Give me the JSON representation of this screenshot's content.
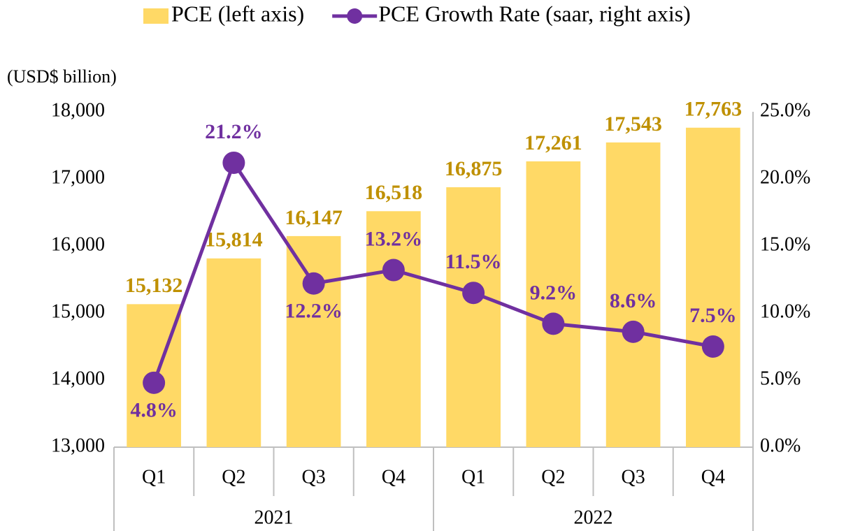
{
  "chart_data": {
    "type": "bar",
    "y_label": "(USD$ billion)",
    "categories": [
      "Q1",
      "Q2",
      "Q3",
      "Q4",
      "Q1",
      "Q2",
      "Q3",
      "Q4"
    ],
    "x_groups": [
      "2021",
      "2022"
    ],
    "series": [
      {
        "name": "PCE (left axis)",
        "type": "bar",
        "color": "#ffd966",
        "label_color": "#bf9000",
        "values": [
          15132,
          15814,
          16147,
          16518,
          16875,
          17261,
          17543,
          17763
        ],
        "value_labels": [
          "15,132",
          "15,814",
          "16,147",
          "16,518",
          "16,875",
          "17,261",
          "17,543",
          "17,763"
        ]
      },
      {
        "name": "PCE Growth Rate (saar, right axis)",
        "type": "line",
        "axis": "y2",
        "color": "#7030a0",
        "label_color": "#7030a0",
        "values": [
          4.8,
          21.2,
          12.2,
          13.2,
          11.5,
          9.2,
          8.6,
          7.5
        ],
        "value_labels": [
          "4.8%",
          "21.2%",
          "12.2%",
          "13.2%",
          "11.5%",
          "9.2%",
          "8.6%",
          "7.5%"
        ]
      }
    ],
    "ylim": [
      13000,
      18000
    ],
    "yticks": [
      {
        "value": 13000,
        "label": "13,000"
      },
      {
        "value": 14000,
        "label": "14,000"
      },
      {
        "value": 15000,
        "label": "15,000"
      },
      {
        "value": 16000,
        "label": "16,000"
      },
      {
        "value": 17000,
        "label": "17,000"
      },
      {
        "value": 18000,
        "label": "18,000"
      }
    ],
    "y2lim": [
      0,
      25
    ],
    "y2ticks": [
      {
        "value": 0,
        "label": "0.0%"
      },
      {
        "value": 5,
        "label": "5.0%"
      },
      {
        "value": 10,
        "label": "10.0%"
      },
      {
        "value": 15,
        "label": "15.0%"
      },
      {
        "value": 20,
        "label": "20.0%"
      },
      {
        "value": 25,
        "label": "25.0%"
      }
    ],
    "grid": false
  }
}
